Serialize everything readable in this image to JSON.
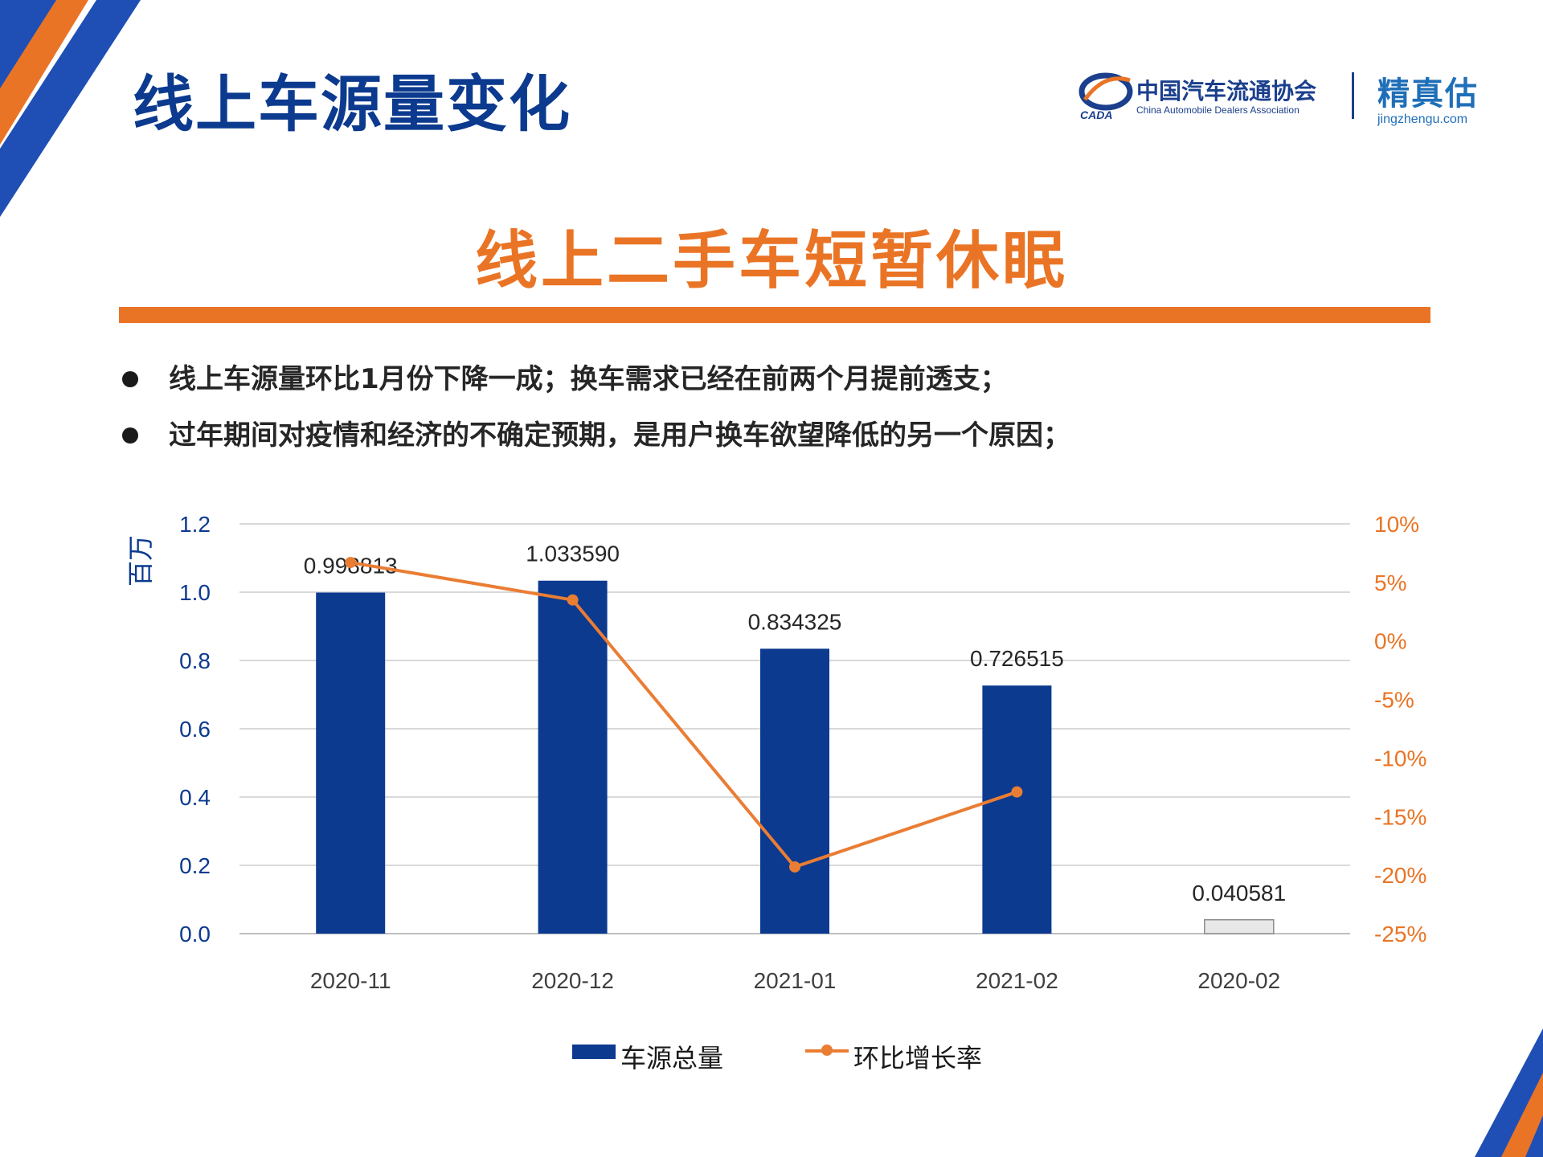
{
  "header": {
    "title": "线上车源量变化",
    "caada_logo_cn": "中国汽车流通协会",
    "caada_logo_en": "China Automobile Dealers Association",
    "caada_emblem_text": "CADA",
    "jzg_logo_cn": "精真估",
    "jzg_logo_en": "jingzhengu.com"
  },
  "section": {
    "headline": "线上二手车短暂休眠",
    "bullets": [
      "线上车源量环比1月份下降一成；换车需求已经在前两个月提前透支；",
      "过年期间对疫情和经济的不确定预期，是用户换车欲望降低的另一个原因；"
    ]
  },
  "colors": {
    "brand_blue": "#0b3a8f",
    "accent_orange": "#ea7425",
    "bar_blue": "#0b3a8f",
    "bar_gray": "#e8e8e8",
    "line_orange": "#ea7d34"
  },
  "chart_data": {
    "type": "bar",
    "categories": [
      "2020-11",
      "2020-12",
      "2021-01",
      "2021-02",
      "2020-02"
    ],
    "ylabel": "百万",
    "ylim": [
      0,
      1.2
    ],
    "yticks": [
      "0.0",
      "0.2",
      "0.4",
      "0.6",
      "0.8",
      "1.0",
      "1.2"
    ],
    "y2lim": [
      -25,
      10
    ],
    "y2ticks": [
      "-25%",
      "-20%",
      "-15%",
      "-10%",
      "-5%",
      "0%",
      "5%",
      "10%"
    ],
    "grid": true,
    "legend_position": "bottom",
    "series": [
      {
        "name": "车源总量",
        "type": "bar",
        "axis": "left",
        "values": [
          0.998813,
          1.03359,
          0.834325,
          0.726515,
          0.040581
        ],
        "labels": [
          "0.998813",
          "1.033590",
          "0.834325",
          "0.726515",
          "0.040581"
        ],
        "highlight_last_gray": true
      },
      {
        "name": "环比增长率",
        "type": "line",
        "axis": "right",
        "unit": "%",
        "values": [
          6.7,
          3.5,
          -19.3,
          -12.9,
          null
        ]
      }
    ]
  }
}
